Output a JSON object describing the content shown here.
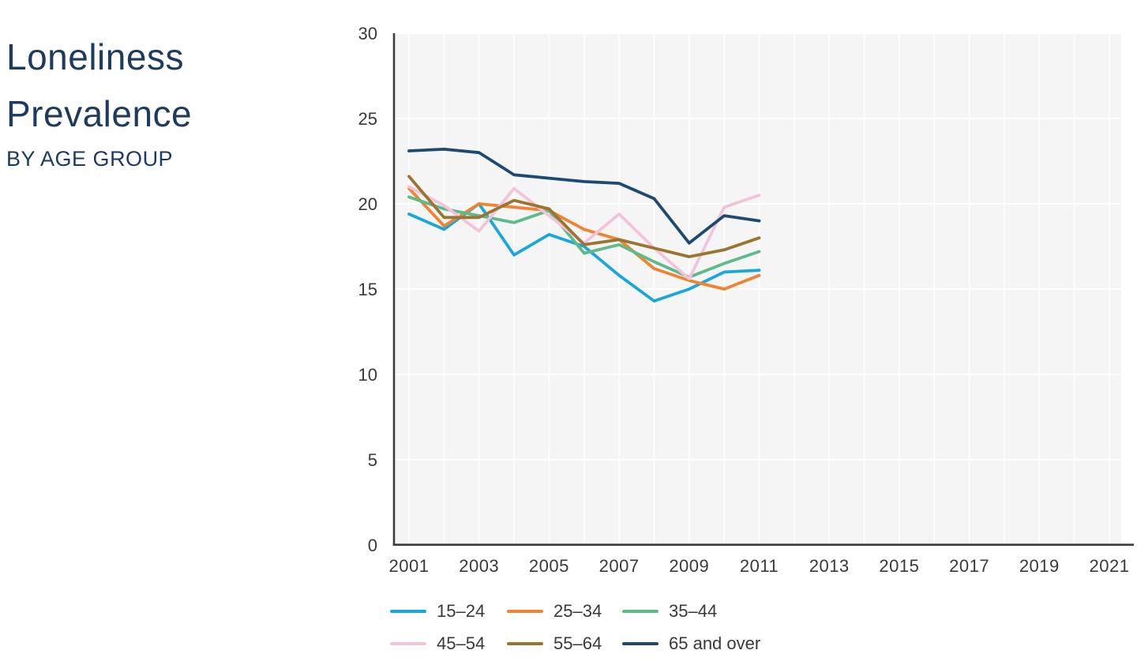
{
  "header": {
    "title_line1": "Loneliness",
    "title_line2": "Prevalence",
    "subtitle": "BY AGE GROUP"
  },
  "chart_data": {
    "type": "line",
    "title": "Loneliness Prevalence",
    "subtitle": "BY AGE GROUP",
    "xlabel": "",
    "ylabel": "",
    "x": [
      2001,
      2002,
      2003,
      2004,
      2005,
      2006,
      2007,
      2008,
      2009,
      2010,
      2011
    ],
    "series": [
      {
        "name": "15–24",
        "color": "#1BA8D9",
        "values": [
          19.4,
          18.5,
          20.0,
          17.0,
          18.2,
          17.5,
          15.8,
          14.3,
          15.0,
          16.0,
          16.1
        ]
      },
      {
        "name": "25–34",
        "color": "#EE8434",
        "values": [
          20.9,
          18.7,
          20.0,
          19.8,
          19.6,
          18.5,
          17.9,
          16.2,
          15.5,
          15.0,
          15.8
        ]
      },
      {
        "name": "35–44",
        "color": "#5EBA8B",
        "values": [
          20.4,
          19.7,
          19.3,
          18.9,
          19.6,
          17.1,
          17.6,
          16.6,
          15.7,
          16.5,
          17.2
        ]
      },
      {
        "name": "45–54",
        "color": "#F2C3DA",
        "values": [
          21.0,
          19.9,
          18.4,
          20.9,
          19.3,
          17.7,
          19.4,
          17.4,
          15.6,
          19.8,
          20.5
        ]
      },
      {
        "name": "55–64",
        "color": "#9B7530",
        "values": [
          21.6,
          19.2,
          19.2,
          20.2,
          19.7,
          17.6,
          17.9,
          17.4,
          16.9,
          17.3,
          18.0
        ]
      },
      {
        "name": "65 and over",
        "color": "#1D4A70",
        "values": [
          23.1,
          23.2,
          23.0,
          21.7,
          21.5,
          21.3,
          21.2,
          20.3,
          17.7,
          19.3,
          19.0
        ]
      }
    ],
    "x_ticks": [
      2001,
      2003,
      2005,
      2007,
      2009,
      2011,
      2013,
      2015,
      2017,
      2019,
      2021
    ],
    "y_ticks": [
      0,
      5,
      10,
      15,
      20,
      25,
      30
    ],
    "xlim": [
      2001,
      2021
    ],
    "ylim": [
      0,
      30
    ],
    "grid": true,
    "plot_background": "#F5F5F5",
    "gridline_color": "#FFFFFF",
    "axis_color": "#3C3C3C",
    "tick_label_color": "#3A3A3A",
    "legend_position": "bottom-left",
    "legend_columns": 3
  }
}
